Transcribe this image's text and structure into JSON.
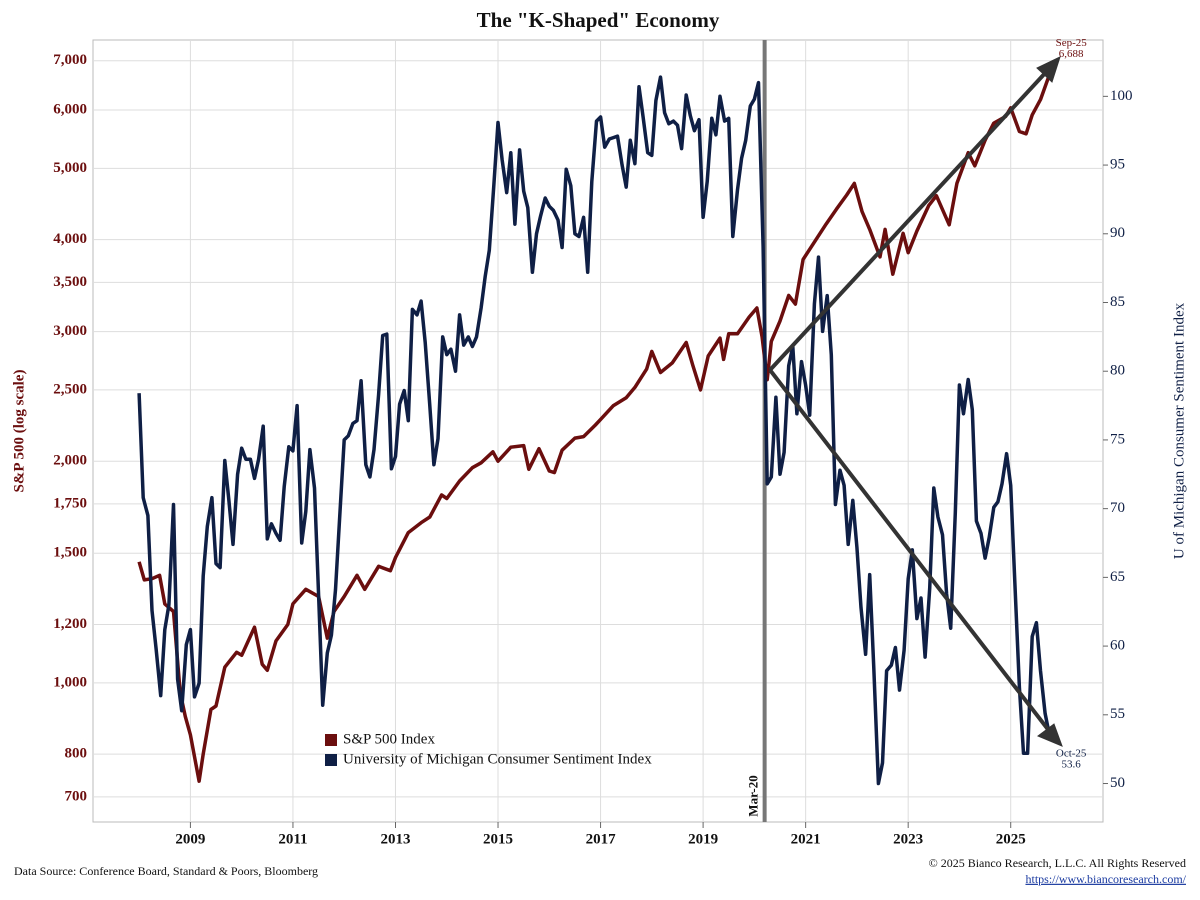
{
  "chart_data": {
    "type": "line",
    "title": "The \"K-Shaped\" Economy",
    "y_label": "S&P 500 (log scale)",
    "y2_label": "U of Michigan Consumer Sentiment Index",
    "log_y": true,
    "grid": true,
    "legend": "lower left",
    "xlim": [
      2007.1,
      2026.8
    ],
    "xticks": [
      2009,
      2011,
      2013,
      2015,
      2017,
      2019,
      2021,
      2023,
      2025
    ],
    "ylim": [
      647,
      7470
    ],
    "yticks": [
      700,
      800,
      {
        "value": 1000,
        "label": "1,000"
      },
      {
        "value": 1200,
        "label": "1,200"
      },
      {
        "value": 1500,
        "label": "1,500"
      },
      {
        "value": 1750,
        "label": "1,750"
      },
      {
        "value": 2000,
        "label": "2,000"
      },
      {
        "value": 2500,
        "label": "2,500"
      },
      {
        "value": 3000,
        "label": "3,000"
      },
      {
        "value": 3500,
        "label": "3,500"
      },
      {
        "value": 4000,
        "label": "4,000"
      },
      {
        "value": 5000,
        "label": "5,000"
      },
      {
        "value": 6000,
        "label": "6,000"
      },
      {
        "value": 7000,
        "label": "7,000"
      }
    ],
    "y2lim": [
      47.2,
      104.1
    ],
    "y2ticks": [
      50,
      55,
      60,
      65,
      70,
      75,
      80,
      85,
      90,
      95,
      100
    ],
    "vline": {
      "x": 2020.2,
      "label": "Mar-20"
    },
    "series": [
      {
        "name": "S&P 500 Index",
        "color": "#6b0e0e",
        "x": [
          2008.0,
          2008.1,
          2008.25,
          2008.4,
          2008.5,
          2008.67,
          2008.8,
          2008.9,
          2009.0,
          2009.17,
          2009.25,
          2009.4,
          2009.5,
          2009.67,
          2009.9,
          2010.0,
          2010.25,
          2010.4,
          2010.5,
          2010.67,
          2010.9,
          2011.0,
          2011.25,
          2011.5,
          2011.67,
          2011.8,
          2012.0,
          2012.25,
          2012.4,
          2012.67,
          2012.9,
          2013.0,
          2013.25,
          2013.5,
          2013.67,
          2013.9,
          2014.0,
          2014.25,
          2014.5,
          2014.67,
          2014.9,
          2015.0,
          2015.25,
          2015.5,
          2015.6,
          2015.8,
          2016.0,
          2016.1,
          2016.25,
          2016.5,
          2016.67,
          2016.9,
          2017.0,
          2017.25,
          2017.5,
          2017.67,
          2017.9,
          2018.0,
          2018.17,
          2018.4,
          2018.67,
          2018.8,
          2018.95,
          2019.1,
          2019.33,
          2019.4,
          2019.5,
          2019.67,
          2019.9,
          2020.05,
          2020.15,
          2020.25,
          2020.33,
          2020.5,
          2020.67,
          2020.8,
          2020.95,
          2021.17,
          2021.4,
          2021.6,
          2021.8,
          2021.95,
          2022.1,
          2022.25,
          2022.45,
          2022.55,
          2022.7,
          2022.9,
          2023.0,
          2023.17,
          2023.4,
          2023.55,
          2023.8,
          2023.95,
          2024.17,
          2024.3,
          2024.5,
          2024.67,
          2024.9,
          2025.0,
          2025.17,
          2025.3,
          2025.42,
          2025.58,
          2025.75
        ],
        "values": [
          1460,
          1380,
          1385,
          1400,
          1280,
          1250,
          970,
          900,
          850,
          735,
          800,
          920,
          930,
          1050,
          1100,
          1090,
          1190,
          1060,
          1040,
          1140,
          1200,
          1280,
          1340,
          1310,
          1150,
          1250,
          1310,
          1400,
          1340,
          1440,
          1420,
          1480,
          1600,
          1650,
          1680,
          1800,
          1780,
          1880,
          1960,
          1990,
          2060,
          2000,
          2090,
          2100,
          1950,
          2080,
          1940,
          1930,
          2070,
          2150,
          2160,
          2240,
          2280,
          2380,
          2440,
          2520,
          2670,
          2820,
          2640,
          2720,
          2900,
          2700,
          2500,
          2780,
          2940,
          2750,
          2980,
          2980,
          3140,
          3230,
          2950,
          2580,
          2910,
          3100,
          3360,
          3270,
          3760,
          3970,
          4200,
          4400,
          4600,
          4770,
          4370,
          4130,
          3790,
          4130,
          3590,
          4080,
          3840,
          4110,
          4450,
          4590,
          4190,
          4770,
          5250,
          5040,
          5460,
          5760,
          5880,
          6040,
          5610,
          5570,
          5910,
          6200,
          6688
        ]
      },
      {
        "name": "University of Michigan Consumer Sentiment Index",
        "color": "#0f1f45",
        "axis": "y2",
        "x": [
          2008.0,
          2008.08,
          2008.17,
          2008.25,
          2008.33,
          2008.42,
          2008.5,
          2008.58,
          2008.67,
          2008.75,
          2008.83,
          2008.92,
          2009.0,
          2009.08,
          2009.17,
          2009.25,
          2009.33,
          2009.42,
          2009.5,
          2009.58,
          2009.67,
          2009.75,
          2009.83,
          2009.92,
          2010.0,
          2010.08,
          2010.17,
          2010.25,
          2010.33,
          2010.42,
          2010.5,
          2010.58,
          2010.67,
          2010.75,
          2010.83,
          2010.92,
          2011.0,
          2011.08,
          2011.17,
          2011.25,
          2011.33,
          2011.42,
          2011.5,
          2011.58,
          2011.67,
          2011.75,
          2011.83,
          2011.92,
          2012.0,
          2012.08,
          2012.17,
          2012.25,
          2012.33,
          2012.42,
          2012.5,
          2012.58,
          2012.67,
          2012.75,
          2012.83,
          2012.92,
          2013.0,
          2013.08,
          2013.17,
          2013.25,
          2013.33,
          2013.42,
          2013.5,
          2013.58,
          2013.67,
          2013.75,
          2013.83,
          2013.92,
          2014.0,
          2014.08,
          2014.17,
          2014.25,
          2014.33,
          2014.42,
          2014.5,
          2014.58,
          2014.67,
          2014.75,
          2014.83,
          2014.92,
          2015.0,
          2015.08,
          2015.17,
          2015.25,
          2015.33,
          2015.42,
          2015.5,
          2015.58,
          2015.67,
          2015.75,
          2015.83,
          2015.92,
          2016.0,
          2016.08,
          2016.17,
          2016.25,
          2016.33,
          2016.42,
          2016.5,
          2016.58,
          2016.67,
          2016.75,
          2016.83,
          2016.92,
          2017.0,
          2017.08,
          2017.17,
          2017.25,
          2017.33,
          2017.42,
          2017.5,
          2017.58,
          2017.67,
          2017.75,
          2017.83,
          2017.92,
          2018.0,
          2018.08,
          2018.17,
          2018.25,
          2018.33,
          2018.42,
          2018.5,
          2018.58,
          2018.67,
          2018.75,
          2018.83,
          2018.92,
          2019.0,
          2019.08,
          2019.17,
          2019.25,
          2019.33,
          2019.42,
          2019.5,
          2019.58,
          2019.67,
          2019.75,
          2019.83,
          2019.92,
          2020.0,
          2020.08,
          2020.17,
          2020.25,
          2020.33,
          2020.42,
          2020.5,
          2020.58,
          2020.67,
          2020.75,
          2020.83,
          2020.92,
          2021.0,
          2021.08,
          2021.17,
          2021.25,
          2021.33,
          2021.42,
          2021.5,
          2021.58,
          2021.67,
          2021.75,
          2021.83,
          2021.92,
          2022.0,
          2022.08,
          2022.17,
          2022.25,
          2022.33,
          2022.42,
          2022.5,
          2022.58,
          2022.67,
          2022.75,
          2022.83,
          2022.92,
          2023.0,
          2023.08,
          2023.17,
          2023.25,
          2023.33,
          2023.42,
          2023.5,
          2023.58,
          2023.67,
          2023.75,
          2023.83,
          2023.92,
          2024.0,
          2024.08,
          2024.17,
          2024.25,
          2024.33,
          2024.42,
          2024.5,
          2024.58,
          2024.67,
          2024.75,
          2024.83,
          2024.92,
          2025.0,
          2025.08,
          2025.17,
          2025.25,
          2025.33,
          2025.42,
          2025.5,
          2025.58,
          2025.67,
          2025.75
        ],
        "values": [
          78.4,
          70.8,
          69.5,
          62.6,
          59.8,
          56.4,
          61.2,
          63,
          70.3,
          57.6,
          55.3,
          60.1,
          61.2,
          56.3,
          57.3,
          65.1,
          68.7,
          70.8,
          66,
          65.7,
          73.5,
          70.6,
          67.4,
          72.5,
          74.4,
          73.6,
          73.6,
          72.2,
          73.6,
          76,
          67.8,
          68.9,
          68.2,
          67.7,
          71.6,
          74.5,
          74.2,
          77.5,
          67.5,
          69.8,
          74.3,
          71.5,
          63.7,
          55.7,
          59.5,
          60.8,
          64.1,
          69.9,
          75,
          75.3,
          76.2,
          76.4,
          79.3,
          73.2,
          72.3,
          74.3,
          78.3,
          82.6,
          82.7,
          72.9,
          73.8,
          77.6,
          78.6,
          76.4,
          84.5,
          84.1,
          85.1,
          82.1,
          77.5,
          73.2,
          75.1,
          82.5,
          81.2,
          81.6,
          80,
          84.1,
          81.9,
          82.5,
          81.8,
          82.5,
          84.6,
          86.9,
          88.8,
          93.6,
          98.1,
          95.4,
          93,
          95.9,
          90.7,
          96.1,
          93.1,
          91.9,
          87.2,
          90,
          91.3,
          92.6,
          92,
          91.7,
          91,
          89,
          94.7,
          93.5,
          90,
          89.8,
          91.2,
          87.2,
          93.8,
          98.2,
          98.5,
          96.3,
          96.9,
          97,
          97.1,
          95,
          93.4,
          96.8,
          95.1,
          100.7,
          98.5,
          95.9,
          95.7,
          99.7,
          101.4,
          98.8,
          98,
          98.2,
          97.9,
          96.2,
          100.1,
          98.6,
          97.5,
          98.3,
          91.2,
          93.8,
          98.4,
          97.2,
          100,
          98.2,
          98.4,
          89.8,
          93.2,
          95.5,
          96.8,
          99.3,
          99.8,
          101,
          89.1,
          71.8,
          72.3,
          78.1,
          72.5,
          74.1,
          80.4,
          81.8,
          76.9,
          80.7,
          79,
          76.8,
          84.9,
          88.3,
          82.9,
          85.5,
          81.2,
          70.3,
          72.8,
          71.7,
          67.4,
          70.6,
          67.2,
          62.8,
          59.4,
          65.2,
          58.4,
          50,
          51.5,
          58.2,
          58.6,
          59.9,
          56.8,
          59.7,
          64.9,
          67,
          62,
          63.5,
          59.2,
          64.2,
          71.5,
          69.4,
          68.1,
          63.8,
          61.3,
          69.7,
          79,
          76.9,
          79.4,
          77.2,
          69.1,
          68.2,
          66.4,
          67.9,
          70.1,
          70.5,
          71.8,
          74,
          71.7,
          64.7,
          57,
          52.2,
          52.2,
          60.7,
          61.7,
          58.2,
          55.1,
          53.6
        ]
      }
    ],
    "end_labels": [
      {
        "date": "Sep-25",
        "value_label": "6,688"
      },
      {
        "date": "Oct-25",
        "value_label": "53.6"
      }
    ],
    "source": "Data Source: Conference Board, Standard & Poors, Bloomberg",
    "copyright": "© 2025 Bianco Research, L.L.C. All Rights Reserved",
    "url": "https://www.biancoresearch.com/"
  }
}
